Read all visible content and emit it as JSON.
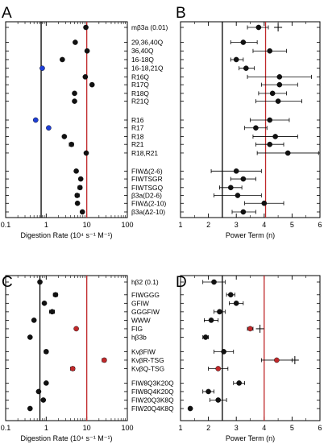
{
  "colors": {
    "black": "#000000",
    "red": "#c0282a",
    "blue": "#1f3fd6",
    "dot": "#111111"
  },
  "panels": {
    "A": {
      "label": "A"
    },
    "B": {
      "label": "B"
    },
    "C": {
      "label": "C"
    },
    "D": {
      "label": "D"
    }
  },
  "chart_data": [
    {
      "panel": "A",
      "type": "scatter",
      "xscale": "log",
      "xlim": [
        0.1,
        100
      ],
      "xticks": [
        "0.1",
        "1",
        "10",
        "100"
      ],
      "xlabel": "Digestion Rate (10⁴ s⁻¹ M⁻¹)",
      "vlines": [
        {
          "x": 0.75,
          "color": "black"
        },
        {
          "x": 10,
          "color": "red"
        }
      ],
      "categories": [
        "mβ3a (0.01)",
        "29,36,40Q",
        "36,40Q",
        "16-18Q",
        "16-18,21Q",
        "R16Q",
        "R17Q",
        "R18Q",
        "R21Q",
        "R16",
        "R17",
        "R18",
        "R21",
        "R18,R21",
        "FIWΔ(2-6)",
        "FIWTSGR",
        "FIWTSGQ",
        "β3a(D2-6)",
        "FIWΔ(2-10)",
        "β3a(Δ2-10)"
      ],
      "slots": [
        0,
        1.9,
        3,
        4.1,
        5.2,
        6.3,
        7.3,
        8.4,
        9.4,
        11.8,
        12.8,
        13.9,
        14.9,
        16,
        18.3,
        19.3,
        20.4,
        21.4,
        22.4,
        23.5
      ],
      "points": [
        {
          "x": 9.5,
          "lo": 9.0,
          "hi": 10.0,
          "color": "dot"
        },
        {
          "x": 5.2,
          "lo": 4.9,
          "hi": 5.6,
          "color": "dot"
        },
        {
          "x": 10.2,
          "lo": 9.7,
          "hi": 10.7,
          "color": "dot"
        },
        {
          "x": 2.5,
          "lo": 2.3,
          "hi": 2.7,
          "color": "dot"
        },
        {
          "x": 0.8,
          "lo": 0.78,
          "hi": 0.82,
          "color": "blue"
        },
        {
          "x": 9.2,
          "lo": 8.7,
          "hi": 9.8,
          "color": "dot"
        },
        {
          "x": 13.5,
          "lo": 12.5,
          "hi": 14.5,
          "color": "dot"
        },
        {
          "x": 5.0,
          "lo": 4.9,
          "hi": 5.2,
          "color": "dot"
        },
        {
          "x": 5.0,
          "lo": 4.9,
          "hi": 5.2,
          "color": "dot"
        },
        {
          "x": 0.55,
          "lo": 0.53,
          "hi": 0.57,
          "color": "blue"
        },
        {
          "x": 1.15,
          "lo": 1.1,
          "hi": 1.2,
          "color": "blue"
        },
        {
          "x": 2.8,
          "lo": 2.7,
          "hi": 2.9,
          "color": "dot"
        },
        {
          "x": 4.2,
          "lo": 3.7,
          "hi": 4.7,
          "color": "dot"
        },
        {
          "x": 9.7,
          "lo": 9.3,
          "hi": 10.1,
          "color": "dot"
        },
        {
          "x": 5.5,
          "lo": 5.1,
          "hi": 5.9,
          "color": "dot"
        },
        {
          "x": 7.1,
          "lo": 6.7,
          "hi": 7.5,
          "color": "dot"
        },
        {
          "x": 6.8,
          "lo": 6.1,
          "hi": 7.6,
          "color": "dot"
        },
        {
          "x": 5.8,
          "lo": 5.2,
          "hi": 6.5,
          "color": "dot"
        },
        {
          "x": 5.9,
          "lo": 5.5,
          "hi": 6.3,
          "color": "dot"
        },
        {
          "x": 7.8,
          "lo": 7.2,
          "hi": 8.4,
          "color": "dot"
        }
      ]
    },
    {
      "panel": "B",
      "type": "scatter",
      "xlim": [
        1,
        6
      ],
      "xticks": [
        "1",
        "2",
        "3",
        "4",
        "5",
        "6"
      ],
      "xlabel": "Power Term (n)",
      "vlines": [
        {
          "x": 2.5,
          "color": "black"
        },
        {
          "x": 4.05,
          "color": "red"
        }
      ],
      "plus_marker": {
        "x": 4.5,
        "slot": 0
      },
      "slots": [
        0,
        1.9,
        3,
        4.1,
        5.2,
        6.3,
        7.3,
        8.4,
        9.4,
        11.8,
        12.8,
        13.9,
        14.9,
        16,
        18.3,
        19.3,
        20.4,
        21.4,
        22.4,
        23.5
      ],
      "points": [
        {
          "x": 3.8,
          "lo": 3.4,
          "hi": 4.15
        },
        {
          "x": 3.25,
          "lo": 2.8,
          "hi": 3.75
        },
        {
          "x": 4.2,
          "lo": 3.6,
          "hi": 4.8
        },
        {
          "x": 3.0,
          "lo": 2.8,
          "hi": 3.25
        },
        {
          "x": 3.35,
          "lo": 3.1,
          "hi": 3.65
        },
        {
          "x": 4.55,
          "lo": 3.4,
          "hi": 5.7
        },
        {
          "x": 4.55,
          "lo": 3.9,
          "hi": 5.2
        },
        {
          "x": 4.3,
          "lo": 3.8,
          "hi": 4.8
        },
        {
          "x": 4.5,
          "lo": 3.7,
          "hi": 5.35
        },
        {
          "x": 4.2,
          "lo": 3.5,
          "hi": 4.9
        },
        {
          "x": 3.7,
          "lo": 3.3,
          "hi": 4.1
        },
        {
          "x": 4.4,
          "lo": 3.6,
          "hi": 5.2
        },
        {
          "x": 4.2,
          "lo": 3.7,
          "hi": 4.7
        },
        {
          "x": 4.85,
          "lo": 3.75,
          "hi": 5.95
        },
        {
          "x": 3.0,
          "lo": 2.1,
          "hi": 3.9
        },
        {
          "x": 3.25,
          "lo": 2.8,
          "hi": 3.7
        },
        {
          "x": 2.8,
          "lo": 2.4,
          "hi": 3.2
        },
        {
          "x": 3.05,
          "lo": 2.2,
          "hi": 3.9
        },
        {
          "x": 4.0,
          "lo": 3.3,
          "hi": 4.7
        },
        {
          "x": 3.25,
          "lo": 2.85,
          "hi": 3.7
        }
      ]
    },
    {
      "panel": "C",
      "type": "scatter",
      "xscale": "log",
      "xlim": [
        0.1,
        100
      ],
      "xticks": [
        "0.1",
        "1",
        "10",
        "100"
      ],
      "xlabel": "Digestion Rate (10⁴ s⁻¹ M⁻¹)",
      "vlines": [
        {
          "x": 0.7,
          "color": "black"
        },
        {
          "x": 10,
          "color": "red"
        }
      ],
      "categories": [
        "hβ2 (0.1)",
        "FIWGGG",
        "GFIW",
        "GGGFIW",
        "WWW",
        "FIG",
        "hβ3b",
        "KvβFIW",
        "KvβR-TSG",
        "KvβQ-TSG",
        "FIW8Q3K20Q",
        "FIW8Q4K20Q",
        "FIW20Q3K8Q",
        "FIW20Q4K8Q"
      ],
      "slots": [
        0,
        1.5,
        2.5,
        3.5,
        4.5,
        5.5,
        6.5,
        8.2,
        9.2,
        10.2,
        11.9,
        12.9,
        13.9,
        14.9
      ],
      "points": [
        {
          "x": 0.7,
          "lo": 0.68,
          "hi": 0.72,
          "color": "dot"
        },
        {
          "x": 1.7,
          "lo": 1.5,
          "hi": 1.9,
          "color": "dot"
        },
        {
          "x": 0.9,
          "lo": 0.85,
          "hi": 0.95,
          "color": "dot"
        },
        {
          "x": 1.4,
          "lo": 1.2,
          "hi": 1.6,
          "color": "dot"
        },
        {
          "x": 0.5,
          "lo": 0.47,
          "hi": 0.53,
          "color": "dot"
        },
        {
          "x": 5.5,
          "lo": 5.3,
          "hi": 5.7,
          "color": "red"
        },
        {
          "x": 0.4,
          "lo": 0.38,
          "hi": 0.42,
          "color": "dot"
        },
        {
          "x": 1.0,
          "lo": 0.9,
          "hi": 1.1,
          "color": "dot"
        },
        {
          "x": 27,
          "lo": 24,
          "hi": 30,
          "color": "red"
        },
        {
          "x": 4.5,
          "lo": 4.0,
          "hi": 5.0,
          "color": "red"
        },
        {
          "x": 1.0,
          "lo": 0.95,
          "hi": 1.05,
          "color": "dot"
        },
        {
          "x": 0.65,
          "lo": 0.62,
          "hi": 0.68,
          "color": "dot"
        },
        {
          "x": 0.85,
          "lo": 0.78,
          "hi": 0.92,
          "color": "dot"
        },
        {
          "x": 0.4,
          "lo": 0.38,
          "hi": 0.42,
          "color": "dot"
        }
      ]
    },
    {
      "panel": "D",
      "type": "scatter",
      "xlim": [
        1,
        6
      ],
      "xticks": [
        "1",
        "2",
        "3",
        "4",
        "5",
        "6"
      ],
      "xlabel": "Power Term (n)",
      "vlines": [
        {
          "x": 2.5,
          "color": "black"
        },
        {
          "x": 4.0,
          "color": "red"
        }
      ],
      "plus_markers": [
        {
          "x": 3.85,
          "slot": 5.5
        },
        {
          "x": 5.1,
          "slot": 9.2
        }
      ],
      "slots": [
        0,
        1.5,
        2.5,
        3.5,
        4.5,
        5.5,
        6.5,
        8.2,
        9.2,
        10.2,
        11.9,
        12.9,
        13.9,
        14.9
      ],
      "points": [
        {
          "x": 2.2,
          "lo": 1.8,
          "hi": 2.6,
          "color": "dot"
        },
        {
          "x": 2.8,
          "lo": 2.65,
          "hi": 2.95,
          "color": "dot"
        },
        {
          "x": 3.0,
          "lo": 2.75,
          "hi": 3.25,
          "color": "dot"
        },
        {
          "x": 2.4,
          "lo": 2.2,
          "hi": 2.6,
          "color": "dot"
        },
        {
          "x": 2.1,
          "lo": 1.85,
          "hi": 2.35,
          "color": "dot"
        },
        {
          "x": 3.5,
          "lo": 3.4,
          "hi": 3.6,
          "color": "red"
        },
        {
          "x": 1.9,
          "lo": 1.8,
          "hi": 2.0,
          "color": "dot"
        },
        {
          "x": 2.55,
          "lo": 2.2,
          "hi": 2.9,
          "color": "dot"
        },
        {
          "x": 4.45,
          "lo": 3.9,
          "hi": 5.0,
          "color": "red"
        },
        {
          "x": 2.35,
          "lo": 2.0,
          "hi": 2.7,
          "color": "red"
        },
        {
          "x": 3.1,
          "lo": 2.9,
          "hi": 3.3,
          "color": "dot"
        },
        {
          "x": 2.0,
          "lo": 1.8,
          "hi": 2.2,
          "color": "dot"
        },
        {
          "x": 2.35,
          "lo": 2.05,
          "hi": 2.65,
          "color": "dot"
        },
        {
          "x": 1.35,
          "lo": 1.3,
          "hi": 1.4,
          "color": "dot"
        }
      ]
    }
  ]
}
